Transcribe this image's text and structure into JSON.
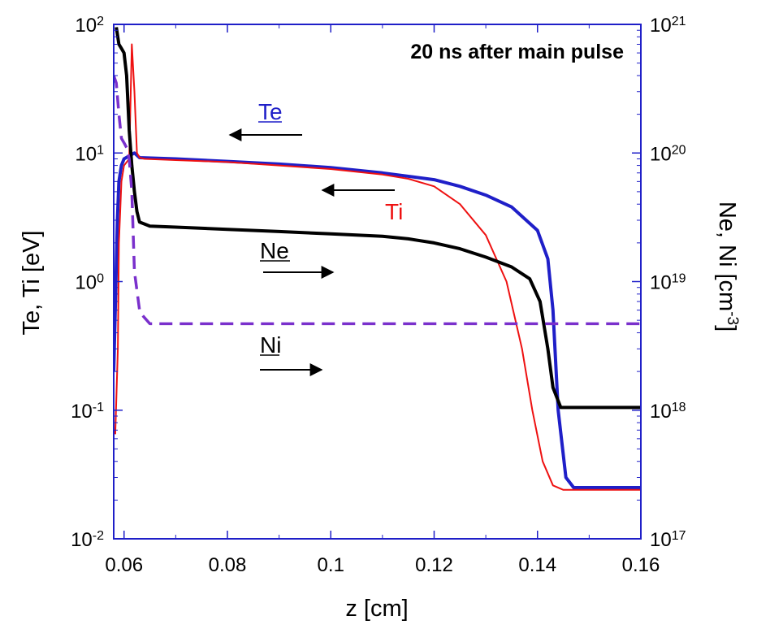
{
  "chart_data": {
    "type": "line",
    "title": "20 ns after main pulse",
    "xlabel": "z  [cm]",
    "ylabel_left": "Te, Ti  [eV]",
    "ylabel_right": {
      "base": "Ne, Ni  [cm",
      "exponent": "-3",
      "close": "]"
    },
    "xlim": [
      0.058,
      0.16
    ],
    "ylim_left": [
      0.01,
      100
    ],
    "ylim_right": [
      1e+17,
      1e+21
    ],
    "yscale": "log",
    "grid": false,
    "x_ticks": [
      0.06,
      0.08,
      0.1,
      0.12,
      0.14,
      0.16
    ],
    "x_tick_labels": [
      "0.06",
      "0.08",
      "0.1",
      "0.12",
      "0.14",
      "0.16"
    ],
    "y_left_ticks": [
      {
        "value": 100,
        "base": "10",
        "exp": "2"
      },
      {
        "value": 10,
        "base": "10",
        "exp": "1"
      },
      {
        "value": 1,
        "base": "10",
        "exp": "0"
      },
      {
        "value": 0.1,
        "base": "10",
        "exp": "-1"
      },
      {
        "value": 0.01,
        "base": "10",
        "exp": "-2"
      }
    ],
    "y_right_ticks": [
      {
        "value": 1e+21,
        "base": "10",
        "exp": "21"
      },
      {
        "value": 1e+20,
        "base": "10",
        "exp": "20"
      },
      {
        "value": 1e+19,
        "base": "10",
        "exp": "19"
      },
      {
        "value": 1e+18,
        "base": "10",
        "exp": "18"
      },
      {
        "value": 1e+17,
        "base": "10",
        "exp": "17"
      }
    ],
    "series": [
      {
        "name": "Te",
        "axis": "left",
        "color": "#1f1fc8",
        "width": 4,
        "dash": "",
        "x": [
          0.058,
          0.0583,
          0.0587,
          0.059,
          0.0595,
          0.06,
          0.061,
          0.062,
          0.063,
          0.07,
          0.08,
          0.09,
          0.1,
          0.11,
          0.12,
          0.125,
          0.13,
          0.135,
          0.14,
          0.142,
          0.143,
          0.144,
          0.1455,
          0.147,
          0.16
        ],
        "y": [
          0.2,
          0.6,
          3,
          6,
          8,
          9,
          9.5,
          10,
          9.2,
          9,
          8.6,
          8.2,
          7.7,
          7.0,
          6.2,
          5.5,
          4.7,
          3.8,
          2.5,
          1.5,
          0.6,
          0.1,
          0.03,
          0.025,
          0.025
        ]
      },
      {
        "name": "Ti",
        "axis": "left",
        "color": "#ee1111",
        "width": 2,
        "dash": "",
        "x": [
          0.0583,
          0.0588,
          0.059,
          0.0595,
          0.06,
          0.061,
          0.0615,
          0.062,
          0.0625,
          0.063,
          0.064,
          0.07,
          0.08,
          0.09,
          0.1,
          0.11,
          0.115,
          0.12,
          0.125,
          0.13,
          0.134,
          0.137,
          0.139,
          0.141,
          0.143,
          0.145,
          0.16
        ],
        "y": [
          0.065,
          0.3,
          2,
          6,
          8,
          9,
          70,
          30,
          10,
          9.2,
          9,
          8.8,
          8.5,
          8.0,
          7.5,
          6.8,
          6.3,
          5.5,
          4.0,
          2.3,
          1.0,
          0.3,
          0.1,
          0.04,
          0.026,
          0.024,
          0.024
        ]
      },
      {
        "name": "Ne",
        "axis": "right",
        "color": "#000000",
        "width": 4,
        "dash": "",
        "x": [
          0.0585,
          0.059,
          0.0595,
          0.06,
          0.0605,
          0.061,
          0.0615,
          0.062,
          0.0625,
          0.063,
          0.065,
          0.07,
          0.08,
          0.09,
          0.1,
          0.11,
          0.115,
          0.12,
          0.125,
          0.13,
          0.135,
          0.1385,
          0.1405,
          0.142,
          0.143,
          0.1445,
          0.16
        ],
        "y": [
          9.5e+20,
          7e+20,
          6.5e+20,
          6e+20,
          4e+20,
          1.5e+20,
          8e+19,
          5e+19,
          3.5e+19,
          2.9e+19,
          2.7e+19,
          2.65e+19,
          2.55e+19,
          2.45e+19,
          2.35e+19,
          2.25e+19,
          2.15e+19,
          2e+19,
          1.8e+19,
          1.55e+19,
          1.3e+19,
          1.05e+19,
          7e+18,
          3e+18,
          1.5e+18,
          1.05e+18,
          1.05e+18
        ]
      },
      {
        "name": "Ni",
        "axis": "right",
        "color": "#7a30cc",
        "width": 3.5,
        "dash": "16 9",
        "x": [
          0.058,
          0.0585,
          0.059,
          0.0595,
          0.06,
          0.0605,
          0.061,
          0.0615,
          0.062,
          0.063,
          0.0635,
          0.065,
          0.07,
          0.1,
          0.13,
          0.16
        ],
        "y": [
          4e+20,
          3.5e+20,
          2e+20,
          1.3e+20,
          1.2e+20,
          1.1e+20,
          9e+19,
          5e+19,
          1.2e+19,
          6e+18,
          5.5e+18,
          4.7e+18,
          4.7e+18,
          4.7e+18,
          4.7e+18,
          4.7e+18
        ]
      }
    ],
    "annotations": [
      {
        "text": "Te",
        "color": "#1f1fc8",
        "underline": true,
        "arrow": "left"
      },
      {
        "text": "Ti",
        "color": "#ee1111",
        "underline": false,
        "arrow": "left"
      },
      {
        "text": "Ne",
        "color": "#000000",
        "underline": true,
        "arrow": "right"
      },
      {
        "text": "Ni",
        "color": "#000000",
        "underline": true,
        "arrow": "right"
      }
    ]
  }
}
